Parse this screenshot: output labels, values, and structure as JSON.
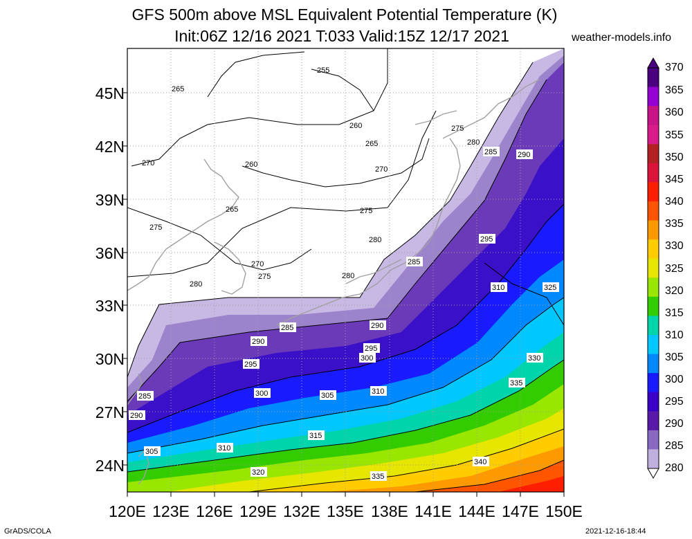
{
  "header": {
    "title_line1": "GFS 500m above MSL Equivalent Potential Temperature (K)",
    "title_line2": "Init:06Z 12/16 2021 T:033 Valid:15Z 12/17 2021",
    "site": "weather-models.info"
  },
  "axes": {
    "lat_labels": [
      "45N",
      "42N",
      "39N",
      "36N",
      "33N",
      "30N",
      "27N",
      "24N"
    ],
    "lon_labels": [
      "120E",
      "123E",
      "126E",
      "129E",
      "132E",
      "135E",
      "138E",
      "141E",
      "144E",
      "147E",
      "150E"
    ]
  },
  "colorbar": {
    "labels": [
      "370",
      "365",
      "360",
      "355",
      "350",
      "345",
      "340",
      "335",
      "330",
      "325",
      "320",
      "315",
      "310",
      "305",
      "300",
      "295",
      "290",
      "285",
      "280"
    ],
    "colors": [
      "#4b0082",
      "#9400d3",
      "#c71585",
      "#db1a8a",
      "#b22222",
      "#dc143c",
      "#ff1f00",
      "#ff5500",
      "#ff9900",
      "#ffcc00",
      "#e6e600",
      "#99e600",
      "#33cc00",
      "#00d4aa",
      "#00c8ff",
      "#0088ff",
      "#1a1aff",
      "#3a00c8",
      "#5a1aa8",
      "#8a6ac0",
      "#c0b0e0"
    ]
  },
  "contour_labels": [
    "255",
    "260",
    "265",
    "270",
    "275",
    "280",
    "285",
    "290",
    "295",
    "300",
    "305",
    "310",
    "315",
    "320",
    "325",
    "330",
    "335",
    "340"
  ],
  "footer": {
    "left": "GrADS/COLA",
    "right": "2021-12-16-18:44"
  }
}
